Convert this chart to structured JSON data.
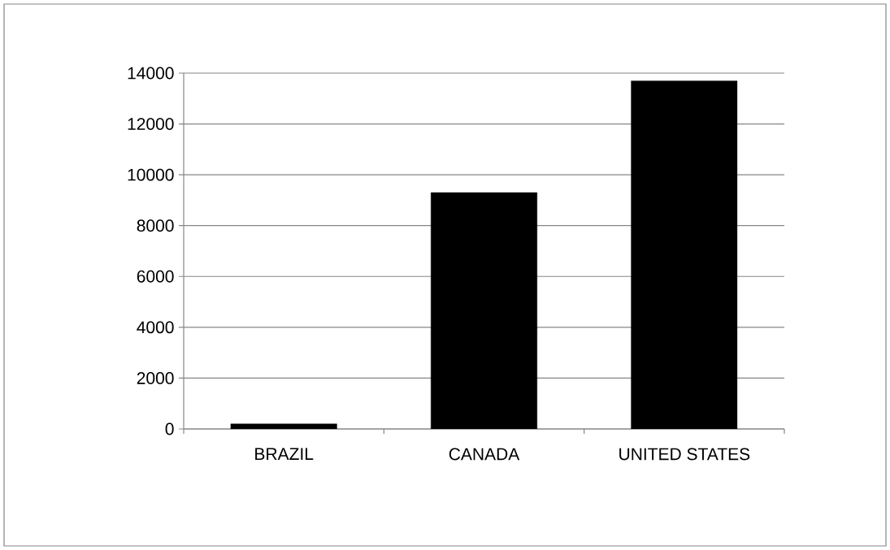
{
  "chart_data": {
    "type": "bar",
    "categories": [
      "BRAZIL",
      "CANADA",
      "UNITED STATES"
    ],
    "values": [
      200,
      9300,
      13700
    ],
    "color": "#000000",
    "ylim": [
      0,
      14000
    ],
    "yticks": [
      0,
      2000,
      4000,
      6000,
      8000,
      10000,
      12000,
      14000
    ],
    "grid": "y"
  }
}
